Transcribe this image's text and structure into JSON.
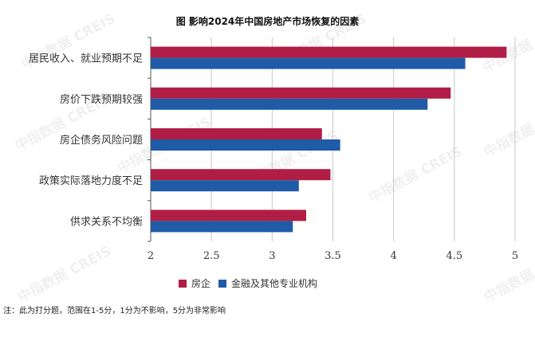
{
  "watermark": "中指数据 CREIS",
  "note": "注：此为打分题，范围在1-5分，1分为不影响，5分为非常影响",
  "colors": {
    "housing": "#b01d45",
    "finance": "#1f5ba6"
  },
  "chart_data": {
    "type": "bar",
    "orientation": "horizontal",
    "title": "图  影响2024年中国房地产市场恢复的因素",
    "categories": [
      "居民收入、就业预期不足",
      "房价下跌预期较强",
      "房企债务风险问题",
      "政策实际落地力度不足",
      "供求关系不均衡"
    ],
    "series": [
      {
        "name": "房企",
        "color": "#b01d45",
        "values": [
          4.93,
          4.47,
          3.41,
          3.48,
          3.28
        ]
      },
      {
        "name": "金融及其他专业机构",
        "color": "#1f5ba6",
        "values": [
          4.59,
          4.28,
          3.56,
          3.22,
          3.17
        ]
      }
    ],
    "xlim": [
      2,
      5
    ],
    "xticks": [
      "2",
      "2.5",
      "3",
      "3.5",
      "4",
      "4.5",
      "5"
    ],
    "grid": true,
    "legend_position": "bottom"
  }
}
